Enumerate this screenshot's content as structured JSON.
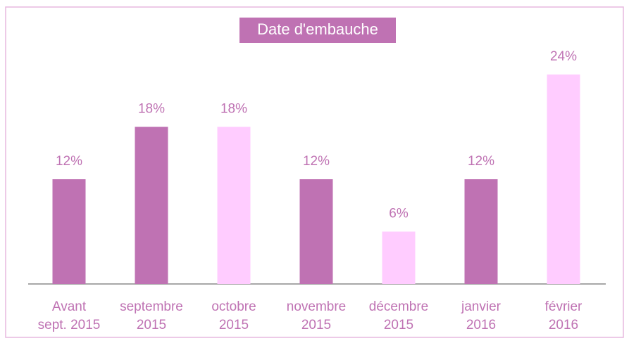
{
  "chart_data": {
    "type": "bar",
    "title": "Date d'embauche",
    "categories": [
      [
        "Avant",
        "sept. 2015"
      ],
      [
        "septembre",
        "2015"
      ],
      [
        "octobre",
        "2015"
      ],
      [
        "novembre",
        "2015"
      ],
      [
        "décembre",
        "2015"
      ],
      [
        "janvier",
        "2016"
      ],
      [
        "février",
        "2016"
      ]
    ],
    "values": [
      12,
      18,
      18,
      12,
      6,
      12,
      24
    ],
    "value_labels": [
      "12%",
      "18%",
      "18%",
      "12%",
      "6%",
      "12%",
      "24%"
    ],
    "colors": [
      "#bf72b3",
      "#bf72b3",
      "#ffccff",
      "#bf72b3",
      "#ffccff",
      "#bf72b3",
      "#ffccff"
    ]
  }
}
